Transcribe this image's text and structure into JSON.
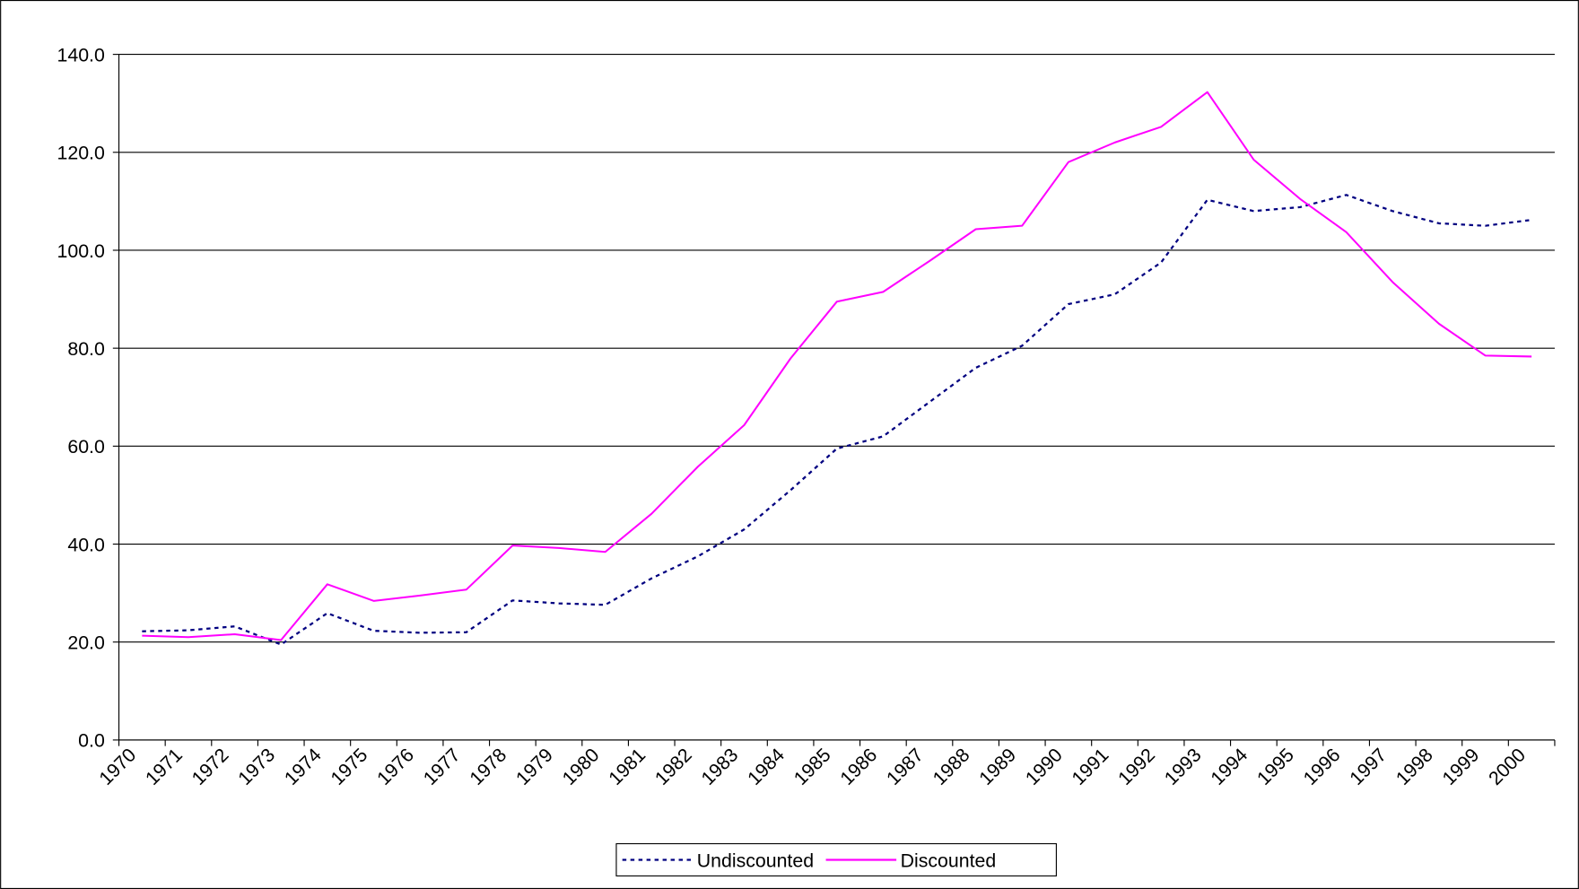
{
  "chart_data": {
    "type": "line",
    "categories": [
      "1970",
      "1971",
      "1972",
      "1973",
      "1974",
      "1975",
      "1976",
      "1977",
      "1978",
      "1979",
      "1980",
      "1981",
      "1982",
      "1983",
      "1984",
      "1985",
      "1986",
      "1987",
      "1988",
      "1989",
      "1990",
      "1991",
      "1992",
      "1993",
      "1994",
      "1995",
      "1996",
      "1997",
      "1998",
      "1999",
      "2000"
    ],
    "series": [
      {
        "name": "Undiscounted",
        "color": "#000080",
        "dash": true,
        "values": [
          22.2,
          22.4,
          23.2,
          19.5,
          25.9,
          22.3,
          21.9,
          22.0,
          28.5,
          27.9,
          27.6,
          33.0,
          37.5,
          43.0,
          51.0,
          59.5,
          62.0,
          69.0,
          76.0,
          80.5,
          89.0,
          91.0,
          97.5,
          110.3,
          108.0,
          108.8,
          111.3,
          108.0,
          105.5,
          105.0,
          106.2
        ]
      },
      {
        "name": "Discounted",
        "color": "#ff00ff",
        "dash": false,
        "values": [
          21.3,
          21.0,
          21.6,
          20.4,
          31.8,
          28.4,
          29.5,
          30.7,
          39.7,
          39.2,
          38.4,
          46.2,
          55.8,
          64.3,
          77.9,
          89.5,
          91.5,
          97.8,
          104.3,
          105.0,
          118.0,
          122.0,
          125.2,
          132.3,
          118.5,
          110.5,
          103.7,
          93.5,
          85.0,
          78.5,
          78.3
        ]
      }
    ],
    "ylim": [
      0,
      140
    ],
    "yticks": [
      {
        "value": 0,
        "label": "0.0"
      },
      {
        "value": 20,
        "label": "20.0"
      },
      {
        "value": 40,
        "label": "40.0"
      },
      {
        "value": 60,
        "label": "60.0"
      },
      {
        "value": 80,
        "label": "80.0"
      },
      {
        "value": 100,
        "label": "100.0"
      },
      {
        "value": 120,
        "label": "120.0"
      },
      {
        "value": 140,
        "label": "140.0"
      }
    ],
    "grid": true,
    "legend": "bottom"
  }
}
